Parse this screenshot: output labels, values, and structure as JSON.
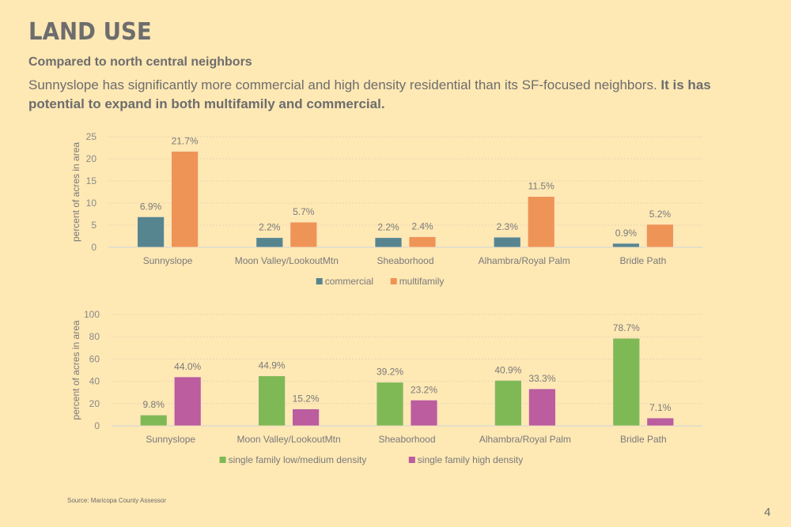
{
  "page": {
    "title": "LAND USE",
    "subtitle": "Compared to north central neighbors",
    "description_plain": "Sunnyslope has significantly more commercial and high density residential than its SF-focused neighbors. ",
    "description_bold": "It is has potential to expand in both multifamily and commercial.",
    "source": "Source: Maricopa County Assessor",
    "page_number": "4"
  },
  "colors": {
    "background": "#fee8b4",
    "commercial": "#568590",
    "multifamily": "#ef9457",
    "sf_low_medium": "#7fb955",
    "sf_high": "#bb5d9e",
    "gridline": "#e6d6b0",
    "axis_text": "#8a8a8a",
    "label_text": "#7a7a7a"
  },
  "chart_data": [
    {
      "type": "bar",
      "title": "",
      "xlabel": "",
      "ylabel": "percent of acres in area",
      "ylim": [
        0,
        25
      ],
      "yticks": [
        0,
        5,
        10,
        15,
        20,
        25
      ],
      "grid": true,
      "legend_position": "bottom",
      "categories": [
        "Sunnyslope",
        "Moon Valley/LookoutMtn",
        "Sheaborhood",
        "Alhambra/Royal Palm",
        "Bridle Path"
      ],
      "series": [
        {
          "name": "commercial",
          "color_key": "commercial",
          "values": [
            6.9,
            2.2,
            2.2,
            2.3,
            0.9
          ],
          "labels": [
            "6.9%",
            "2.2%",
            "2.2%",
            "2.3%",
            "0.9%"
          ]
        },
        {
          "name": "multifamily",
          "color_key": "multifamily",
          "values": [
            21.7,
            5.7,
            2.4,
            11.5,
            5.2
          ],
          "labels": [
            "21.7%",
            "5.7%",
            "2.4%",
            "11.5%",
            "5.2%"
          ]
        }
      ]
    },
    {
      "type": "bar",
      "title": "",
      "xlabel": "",
      "ylabel": "percent of acres in area",
      "ylim": [
        0,
        100
      ],
      "yticks": [
        0,
        20,
        40,
        60,
        80,
        100
      ],
      "grid": true,
      "legend_position": "bottom",
      "categories": [
        "Sunnyslope",
        "Moon Valley/LookoutMtn",
        "Sheaborhood",
        "Alhambra/Royal Palm",
        "Bridle Path"
      ],
      "series": [
        {
          "name": "single family low/medium density",
          "color_key": "sf_low_medium",
          "values": [
            9.8,
            44.9,
            39.2,
            40.9,
            78.7
          ],
          "labels": [
            "9.8%",
            "44.9%",
            "39.2%",
            "40.9%",
            "78.7%"
          ]
        },
        {
          "name": "single family high density",
          "color_key": "sf_high",
          "values": [
            44.0,
            15.2,
            23.2,
            33.3,
            7.1
          ],
          "labels": [
            "44.0%",
            "15.2%",
            "23.2%",
            "33.3%",
            "7.1%"
          ]
        }
      ]
    }
  ]
}
